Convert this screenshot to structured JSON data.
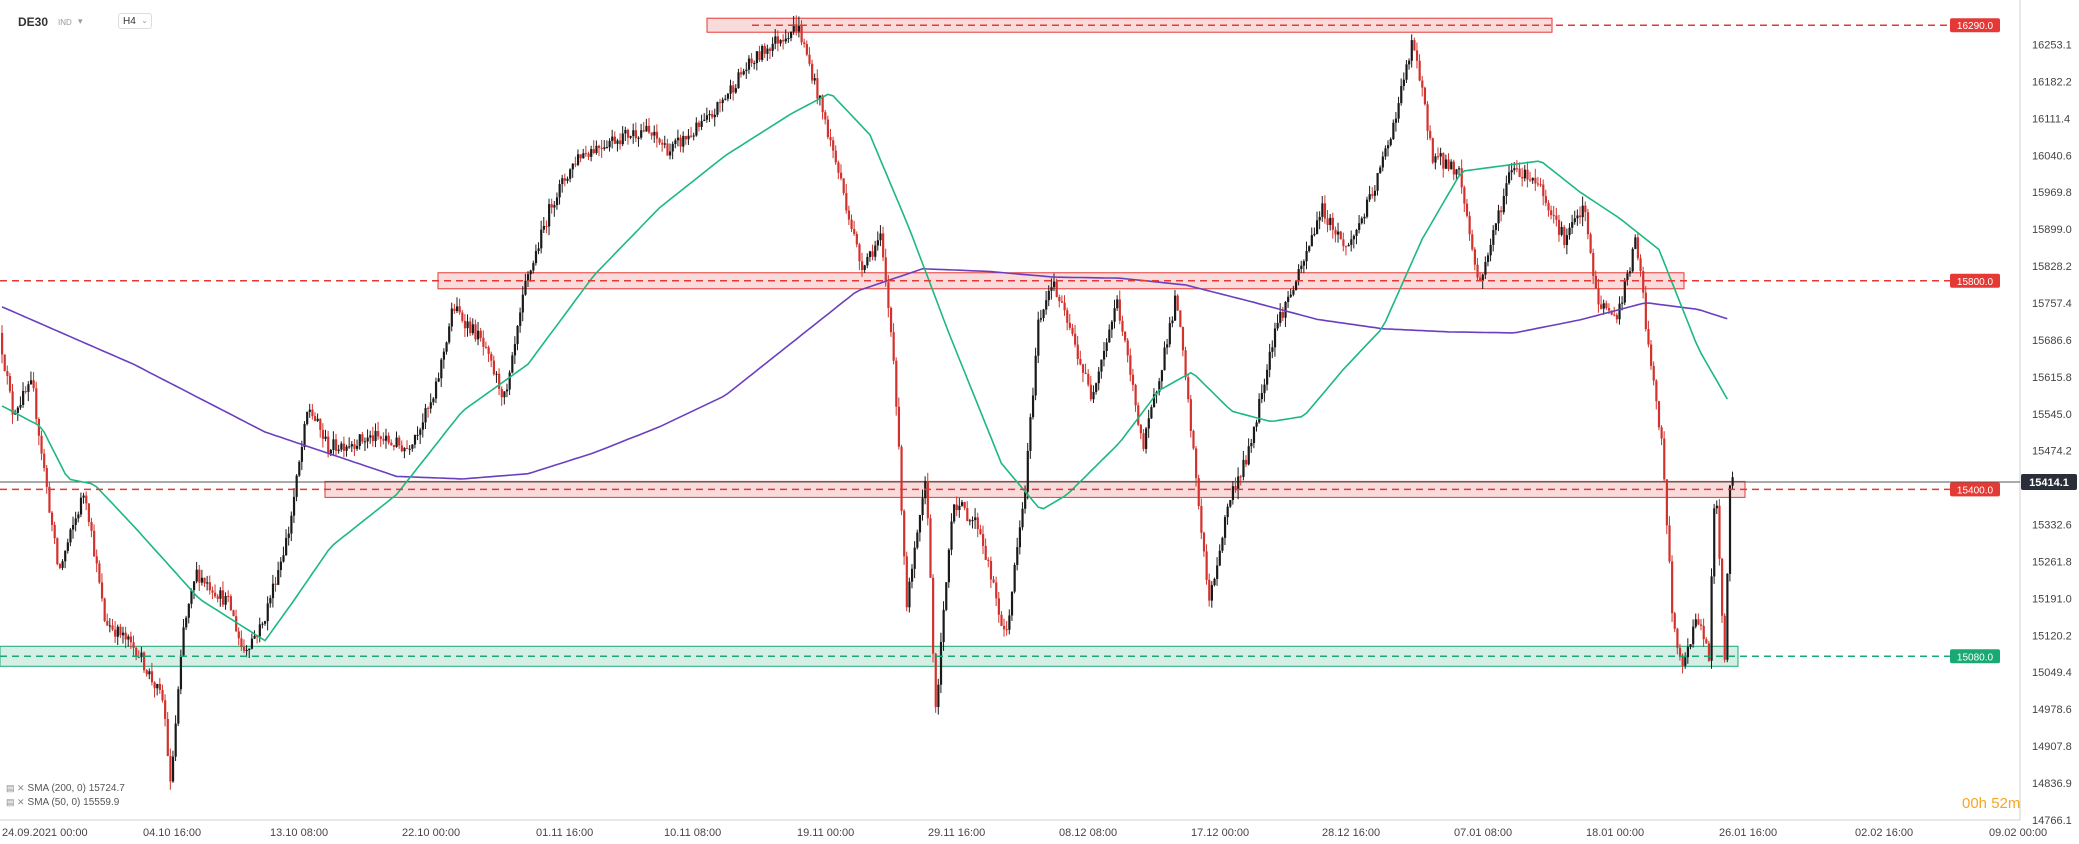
{
  "header": {
    "symbol": "DE30",
    "symbol_type": "IND",
    "timeframe": "H4"
  },
  "indicators": [
    {
      "label": "SMA (200, 0)",
      "value": "15724.7",
      "color": "#6a3fbf"
    },
    {
      "label": "SMA (50, 0)",
      "value": "15559.9",
      "color": "#1db87f"
    }
  ],
  "timer": {
    "hours": "00h",
    "minutes": "52m"
  },
  "colors": {
    "bull": "#1a1a1a",
    "bear": "#d2322d",
    "resistance": "#e53935",
    "support": "#19a974",
    "current": "#2a2e39"
  },
  "chart_data": {
    "type": "candlestick",
    "y_range": [
      14766.1,
      16300
    ],
    "y_ticks": [
      "16253.1",
      "16182.2",
      "16111.4",
      "16040.6",
      "15969.8",
      "15899.0",
      "15828.2",
      "15757.4",
      "15686.6",
      "15615.8",
      "15545.0",
      "15474.2",
      "15332.6",
      "15261.8",
      "15191.0",
      "15120.2",
      "15049.4",
      "14978.6",
      "14907.8",
      "14836.9",
      "14766.1"
    ],
    "x_ticks": [
      "24.09.2021  00:00",
      "04.10  16:00",
      "13.10  08:00",
      "22.10  00:00",
      "01.11  16:00",
      "10.11  08:00",
      "19.11  00:00",
      "29.11  16:00",
      "08.12  08:00",
      "17.12  00:00",
      "28.12  16:00",
      "07.01  08:00",
      "18.01  00:00",
      "26.01  16:00",
      "02.02  16:00",
      "09.02  00:00"
    ],
    "levels": [
      {
        "value": 16290.0,
        "label": "16290.0",
        "kind": "resistance"
      },
      {
        "value": 15800.0,
        "label": "15800.0",
        "kind": "resistance"
      },
      {
        "value": 15400.0,
        "label": "15400.0",
        "kind": "resistance"
      },
      {
        "value": 15080.0,
        "label": "15080.0",
        "kind": "support"
      }
    ],
    "current_price": {
      "value": 15414.1,
      "label": "15414.1"
    },
    "anchors": [
      [
        0,
        15700
      ],
      [
        10,
        15550
      ],
      [
        25,
        15600
      ],
      [
        45,
        15240
      ],
      [
        65,
        15400
      ],
      [
        80,
        15150
      ],
      [
        105,
        15090
      ],
      [
        125,
        14990
      ],
      [
        130,
        14830
      ],
      [
        140,
        15130
      ],
      [
        150,
        15240
      ],
      [
        175,
        15180
      ],
      [
        185,
        15090
      ],
      [
        200,
        15140
      ],
      [
        220,
        15320
      ],
      [
        235,
        15560
      ],
      [
        250,
        15480
      ],
      [
        285,
        15500
      ],
      [
        310,
        15480
      ],
      [
        330,
        15570
      ],
      [
        345,
        15750
      ],
      [
        365,
        15690
      ],
      [
        385,
        15570
      ],
      [
        400,
        15790
      ],
      [
        420,
        15950
      ],
      [
        440,
        16040
      ],
      [
        465,
        16070
      ],
      [
        490,
        16090
      ],
      [
        510,
        16050
      ],
      [
        540,
        16110
      ],
      [
        565,
        16200
      ],
      [
        585,
        16250
      ],
      [
        607,
        16290
      ],
      [
        620,
        16180
      ],
      [
        640,
        15990
      ],
      [
        655,
        15830
      ],
      [
        670,
        15880
      ],
      [
        680,
        15660
      ],
      [
        690,
        15180
      ],
      [
        705,
        15420
      ],
      [
        712,
        14970
      ],
      [
        725,
        15380
      ],
      [
        745,
        15330
      ],
      [
        765,
        15110
      ],
      [
        780,
        15400
      ],
      [
        790,
        15720
      ],
      [
        800,
        15800
      ],
      [
        815,
        15700
      ],
      [
        830,
        15580
      ],
      [
        850,
        15760
      ],
      [
        870,
        15480
      ],
      [
        895,
        15770
      ],
      [
        905,
        15540
      ],
      [
        920,
        15180
      ],
      [
        935,
        15380
      ],
      [
        950,
        15470
      ],
      [
        970,
        15710
      ],
      [
        990,
        15820
      ],
      [
        1005,
        15940
      ],
      [
        1025,
        15860
      ],
      [
        1045,
        15970
      ],
      [
        1060,
        16100
      ],
      [
        1075,
        16260
      ],
      [
        1090,
        16040
      ],
      [
        1110,
        16010
      ],
      [
        1125,
        15790
      ],
      [
        1135,
        15880
      ],
      [
        1150,
        16020
      ],
      [
        1170,
        15990
      ],
      [
        1190,
        15880
      ],
      [
        1205,
        15940
      ],
      [
        1215,
        15760
      ],
      [
        1230,
        15730
      ],
      [
        1245,
        15880
      ],
      [
        1255,
        15650
      ],
      [
        1265,
        15470
      ],
      [
        1272,
        15160
      ],
      [
        1280,
        15050
      ],
      [
        1290,
        15160
      ],
      [
        1300,
        15080
      ],
      [
        1305,
        15430
      ],
      [
        1312,
        15060
      ],
      [
        1316,
        15414
      ]
    ],
    "sma200": [
      [
        0,
        15750
      ],
      [
        100,
        15640
      ],
      [
        200,
        15510
      ],
      [
        300,
        15425
      ],
      [
        350,
        15420
      ],
      [
        400,
        15430
      ],
      [
        450,
        15470
      ],
      [
        500,
        15520
      ],
      [
        550,
        15580
      ],
      [
        600,
        15680
      ],
      [
        650,
        15780
      ],
      [
        700,
        15823
      ],
      [
        750,
        15818
      ],
      [
        800,
        15807
      ],
      [
        850,
        15805
      ],
      [
        900,
        15792
      ],
      [
        950,
        15760
      ],
      [
        1000,
        15726
      ],
      [
        1050,
        15708
      ],
      [
        1100,
        15702
      ],
      [
        1150,
        15700
      ],
      [
        1200,
        15725
      ],
      [
        1250,
        15758
      ],
      [
        1290,
        15745
      ],
      [
        1315,
        15724.7
      ]
    ],
    "sma50": [
      [
        0,
        15560
      ],
      [
        30,
        15520
      ],
      [
        50,
        15420
      ],
      [
        70,
        15410
      ],
      [
        100,
        15330
      ],
      [
        150,
        15190
      ],
      [
        200,
        15110
      ],
      [
        220,
        15180
      ],
      [
        250,
        15290
      ],
      [
        300,
        15390
      ],
      [
        350,
        15550
      ],
      [
        400,
        15640
      ],
      [
        450,
        15810
      ],
      [
        500,
        15940
      ],
      [
        550,
        16040
      ],
      [
        600,
        16120
      ],
      [
        630,
        16160
      ],
      [
        660,
        16080
      ],
      [
        690,
        15900
      ],
      [
        720,
        15700
      ],
      [
        760,
        15450
      ],
      [
        790,
        15360
      ],
      [
        810,
        15390
      ],
      [
        850,
        15490
      ],
      [
        880,
        15590
      ],
      [
        905,
        15625
      ],
      [
        935,
        15550
      ],
      [
        965,
        15530
      ],
      [
        990,
        15540
      ],
      [
        1020,
        15630
      ],
      [
        1050,
        15710
      ],
      [
        1080,
        15880
      ],
      [
        1110,
        16010
      ],
      [
        1140,
        16020
      ],
      [
        1170,
        16030
      ],
      [
        1200,
        15970
      ],
      [
        1230,
        15920
      ],
      [
        1260,
        15860
      ],
      [
        1290,
        15670
      ],
      [
        1315,
        15559.9
      ]
    ]
  }
}
